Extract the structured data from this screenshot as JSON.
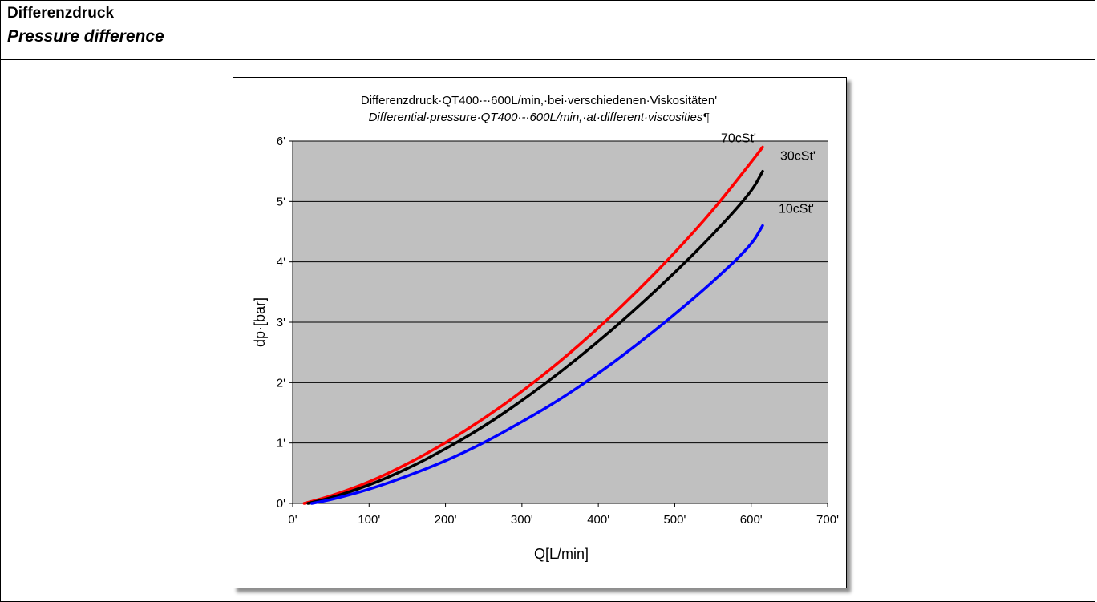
{
  "document": {
    "title": "Differenzdruck",
    "subtitle": "Pressure difference"
  },
  "chart_data": {
    "type": "line",
    "title": "Differenzdruck·QT400·-·600L/min,·bei·verschiedenen·Viskositäten'",
    "subtitle": "Differential·pressure·QT400·-·600L/min,·at·different·viscosities¶",
    "xlabel": "Q[L/min]",
    "ylabel": "dp·[bar]",
    "xlim": [
      0,
      700
    ],
    "ylim": [
      0,
      6
    ],
    "x_tick_labels": [
      "0'",
      "100'",
      "200'",
      "300'",
      "400'",
      "500'",
      "600'",
      "700'"
    ],
    "y_tick_labels": [
      "0'",
      "1'",
      "2'",
      "3'",
      "4'",
      "5'",
      "6'"
    ],
    "grid": true,
    "plot_background": "#c0c0c0",
    "series": [
      {
        "name": "70cSt'",
        "color": "#ff0000",
        "x": [
          15,
          50,
          100,
          150,
          200,
          250,
          300,
          350,
          400,
          450,
          500,
          550,
          600,
          615
        ],
        "y": [
          0,
          0.12,
          0.35,
          0.65,
          1.0,
          1.4,
          1.85,
          2.35,
          2.9,
          3.5,
          4.15,
          4.85,
          5.65,
          5.9
        ]
      },
      {
        "name": "30cSt'",
        "color": "#000000",
        "x": [
          20,
          50,
          100,
          150,
          200,
          250,
          300,
          350,
          400,
          450,
          500,
          550,
          600,
          615
        ],
        "y": [
          0,
          0.09,
          0.3,
          0.57,
          0.9,
          1.27,
          1.7,
          2.17,
          2.68,
          3.23,
          3.82,
          4.45,
          5.15,
          5.5
        ]
      },
      {
        "name": "10cSt'",
        "color": "#0000ff",
        "x": [
          25,
          50,
          100,
          150,
          200,
          250,
          300,
          350,
          400,
          450,
          500,
          550,
          600,
          615
        ],
        "y": [
          0,
          0.06,
          0.23,
          0.45,
          0.7,
          1.0,
          1.35,
          1.72,
          2.15,
          2.62,
          3.13,
          3.67,
          4.27,
          4.6
        ]
      }
    ]
  }
}
